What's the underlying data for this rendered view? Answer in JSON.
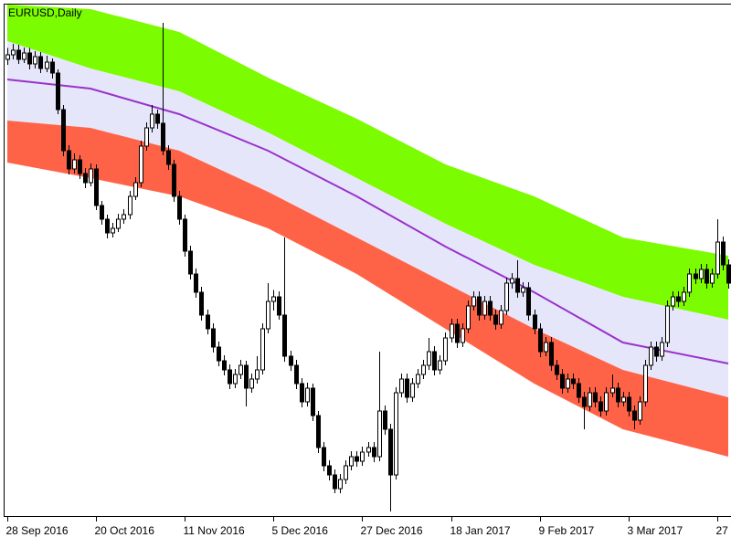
{
  "chart_data": {
    "type": "candlestick",
    "title": "EURUSD,Daily",
    "xlim": [
      -0.5,
      130.5
    ],
    "ylim": [
      1.025,
      1.137
    ],
    "xticks": [
      {
        "value": 0,
        "label": "28 Sep 2016"
      },
      {
        "value": 16,
        "label": "20 Oct 2016"
      },
      {
        "value": 32,
        "label": "11 Nov 2016"
      },
      {
        "value": 48,
        "label": "5 Dec 2016"
      },
      {
        "value": 64,
        "label": "27 Dec 2016"
      },
      {
        "value": 80,
        "label": "18 Jan 2017"
      },
      {
        "value": 96,
        "label": "9 Feb 2017"
      },
      {
        "value": 112,
        "label": "3 Mar 2017"
      },
      {
        "value": 128,
        "label": "27"
      }
    ],
    "up_color": "#ffffff",
    "down_color": "#000000",
    "open": [
      1.125,
      1.126,
      1.127,
      1.125,
      1.1264,
      1.124,
      1.1256,
      1.123,
      1.1244,
      1.122,
      1.114,
      1.105,
      1.101,
      1.103,
      1.1,
      1.098,
      1.101,
      1.093,
      1.09,
      1.087,
      1.088,
      1.09,
      1.091,
      1.095,
      1.098,
      1.106,
      1.11,
      1.113,
      1.111,
      1.105,
      1.102,
      1.095,
      1.09,
      1.083,
      1.078,
      1.074,
      1.069,
      1.066,
      1.062,
      1.059,
      1.057,
      1.054,
      1.056,
      1.058,
      1.053,
      1.055,
      1.057,
      1.066,
      1.072,
      1.073,
      1.069,
      1.06,
      1.058,
      1.054,
      1.05,
      1.053,
      1.047,
      1.04,
      1.036,
      1.034,
      1.031,
      1.033,
      1.036,
      1.038,
      1.037,
      1.039,
      1.04,
      1.038,
      1.048,
      1.044,
      1.034,
      1.052,
      1.055,
      1.051,
      1.054,
      1.056,
      1.058,
      1.061,
      1.057,
      1.059,
      1.064,
      1.067,
      1.063,
      1.066,
      1.071,
      1.073,
      1.069,
      1.072,
      1.069,
      1.067,
      1.07,
      1.076,
      1.077,
      1.074,
      1.075,
      1.069,
      1.066,
      1.061,
      1.063,
      1.058,
      1.056,
      1.053,
      1.055,
      1.054,
      1.051,
      1.049,
      1.052,
      1.05,
      1.048,
      1.052,
      1.053,
      1.05,
      1.051,
      1.048,
      1.046,
      1.05,
      1.058,
      1.062,
      1.06,
      1.063,
      1.071,
      1.073,
      1.072,
      1.074,
      1.078,
      1.077,
      1.079,
      1.076,
      1.078,
      1.085,
      1.08
    ],
    "high": [
      1.1275,
      1.1284,
      1.1282,
      1.1276,
      1.1275,
      1.1268,
      1.1266,
      1.1258,
      1.1252,
      1.1228,
      1.115,
      1.1062,
      1.1044,
      1.104,
      1.1012,
      1.1022,
      1.102,
      1.094,
      1.091,
      1.0892,
      1.0912,
      1.0922,
      1.0962,
      1.0992,
      1.1072,
      1.1112,
      1.115,
      1.114,
      1.133,
      1.1062,
      1.103,
      1.0962,
      1.091,
      1.0842,
      1.0792,
      1.0752,
      1.0702,
      1.0672,
      1.0632,
      1.0602,
      1.0582,
      1.0572,
      1.0592,
      1.059,
      1.0562,
      1.06,
      1.0672,
      1.076,
      1.0745,
      1.0742,
      1.086,
      1.0612,
      1.0592,
      1.0552,
      1.0542,
      1.054,
      1.048,
      1.0412,
      1.0372,
      1.0352,
      1.0342,
      1.0372,
      1.0392,
      1.0392,
      1.0402,
      1.0412,
      1.0412,
      1.061,
      1.0492,
      1.0452,
      1.0532,
      1.0562,
      1.0562,
      1.0552,
      1.0572,
      1.0592,
      1.064,
      1.0622,
      1.0602,
      1.0652,
      1.0682,
      1.0682,
      1.0672,
      1.0722,
      1.0742,
      1.0742,
      1.0732,
      1.0732,
      1.0702,
      1.0712,
      1.0772,
      1.0782,
      1.081,
      1.0762,
      1.0762,
      1.0702,
      1.0672,
      1.0642,
      1.0642,
      1.0592,
      1.0572,
      1.0562,
      1.0562,
      1.0552,
      1.0522,
      1.0532,
      1.0532,
      1.0512,
      1.0532,
      1.056,
      1.0542,
      1.0522,
      1.0522,
      1.0492,
      1.0512,
      1.0592,
      1.0632,
      1.0632,
      1.0642,
      1.0722,
      1.0742,
      1.0742,
      1.0752,
      1.0792,
      1.0792,
      1.0802,
      1.0802,
      1.0792,
      1.09,
      1.0862,
      1.0812
    ],
    "low": [
      1.1238,
      1.125,
      1.124,
      1.1242,
      1.1228,
      1.123,
      1.122,
      1.1222,
      1.1208,
      1.113,
      1.1038,
      1.0998,
      1.1,
      1.0988,
      1.0968,
      1.0972,
      1.092,
      1.0888,
      1.0858,
      1.086,
      1.0872,
      1.089,
      1.09,
      1.0942,
      1.097,
      1.105,
      1.109,
      1.1098,
      1.104,
      1.1008,
      1.0938,
      1.0888,
      1.0818,
      1.0768,
      1.0728,
      1.0678,
      1.0648,
      1.0608,
      1.0578,
      1.0558,
      1.0528,
      1.053,
      1.055,
      1.049,
      1.052,
      1.054,
      1.056,
      1.065,
      1.07,
      1.068,
      1.0588,
      1.0568,
      1.0528,
      1.0488,
      1.049,
      1.0458,
      1.0388,
      1.0348,
      1.0328,
      1.03,
      1.03,
      1.032,
      1.035,
      1.0358,
      1.036,
      1.038,
      1.0368,
      1.037,
      1.0428,
      1.026,
      1.033,
      1.051,
      1.0498,
      1.05,
      1.053,
      1.055,
      1.057,
      1.0558,
      1.056,
      1.058,
      1.063,
      1.0618,
      1.062,
      1.065,
      1.07,
      1.0678,
      1.068,
      1.0678,
      1.0658,
      1.066,
      1.069,
      1.0748,
      1.0728,
      1.073,
      1.0678,
      1.0648,
      1.0598,
      1.06,
      1.0568,
      1.0548,
      1.0518,
      1.052,
      1.0528,
      1.0498,
      1.044,
      1.048,
      1.0488,
      1.0468,
      1.047,
      1.051,
      1.0488,
      1.049,
      1.0468,
      1.044,
      1.045,
      1.049,
      1.057,
      1.0588,
      1.059,
      1.062,
      1.07,
      1.0708,
      1.071,
      1.073,
      1.0758,
      1.076,
      1.0748,
      1.075,
      1.077,
      1.0788,
      1.0748
    ],
    "close": [
      1.126,
      1.127,
      1.125,
      1.1264,
      1.124,
      1.1256,
      1.123,
      1.1244,
      1.122,
      1.114,
      1.105,
      1.101,
      1.103,
      1.1,
      1.098,
      1.101,
      1.093,
      1.09,
      1.087,
      1.088,
      1.09,
      1.091,
      1.095,
      1.098,
      1.106,
      1.11,
      1.113,
      1.111,
      1.105,
      1.102,
      1.095,
      1.09,
      1.083,
      1.078,
      1.074,
      1.069,
      1.066,
      1.062,
      1.059,
      1.057,
      1.054,
      1.056,
      1.058,
      1.053,
      1.055,
      1.057,
      1.066,
      1.072,
      1.073,
      1.069,
      1.06,
      1.058,
      1.054,
      1.05,
      1.053,
      1.047,
      1.04,
      1.036,
      1.034,
      1.031,
      1.033,
      1.036,
      1.038,
      1.037,
      1.039,
      1.04,
      1.038,
      1.048,
      1.044,
      1.034,
      1.052,
      1.055,
      1.051,
      1.054,
      1.056,
      1.058,
      1.061,
      1.057,
      1.059,
      1.064,
      1.067,
      1.063,
      1.066,
      1.071,
      1.073,
      1.069,
      1.072,
      1.069,
      1.067,
      1.07,
      1.076,
      1.077,
      1.074,
      1.075,
      1.069,
      1.066,
      1.061,
      1.063,
      1.058,
      1.056,
      1.053,
      1.055,
      1.054,
      1.051,
      1.049,
      1.052,
      1.05,
      1.048,
      1.052,
      1.053,
      1.05,
      1.051,
      1.048,
      1.046,
      1.05,
      1.058,
      1.062,
      1.06,
      1.063,
      1.071,
      1.073,
      1.072,
      1.074,
      1.078,
      1.077,
      1.079,
      1.076,
      1.078,
      1.085,
      1.08,
      1.076
    ],
    "bands": [
      {
        "color": "#7cfc00",
        "x": [
          0,
          15,
          31,
          47,
          63,
          79,
          95,
          111,
          130
        ],
        "upper": [
          1.137,
          1.136,
          1.131,
          1.121,
          1.112,
          1.102,
          1.095,
          1.086,
          1.082
        ],
        "lower": [
          1.129,
          1.123,
          1.118,
          1.109,
          1.099,
          1.089,
          1.08,
          1.073,
          1.068
        ]
      },
      {
        "color": "#e6e6fa",
        "x": [
          0,
          15,
          31,
          47,
          63,
          79,
          95,
          111,
          130
        ],
        "upper": [
          1.129,
          1.123,
          1.118,
          1.109,
          1.099,
          1.089,
          1.08,
          1.073,
          1.068
        ],
        "lower": [
          1.1116,
          1.11,
          1.105,
          1.096,
          1.086,
          1.076,
          1.066,
          1.057,
          1.051
        ]
      },
      {
        "color": "#ff6347",
        "x": [
          0,
          15,
          31,
          47,
          63,
          79,
          95,
          111,
          130
        ],
        "upper": [
          1.1116,
          1.11,
          1.105,
          1.096,
          1.086,
          1.076,
          1.066,
          1.057,
          1.051
        ],
        "lower": [
          1.1024,
          1.099,
          1.095,
          1.088,
          1.078,
          1.066,
          1.054,
          1.044,
          1.038
        ]
      }
    ],
    "line": {
      "color": "#9932cc",
      "x": [
        0,
        15,
        31,
        47,
        63,
        79,
        95,
        111,
        130
      ],
      "values": [
        1.1206,
        1.1186,
        1.113,
        1.105,
        1.095,
        1.084,
        1.074,
        1.063,
        1.0584
      ]
    }
  }
}
